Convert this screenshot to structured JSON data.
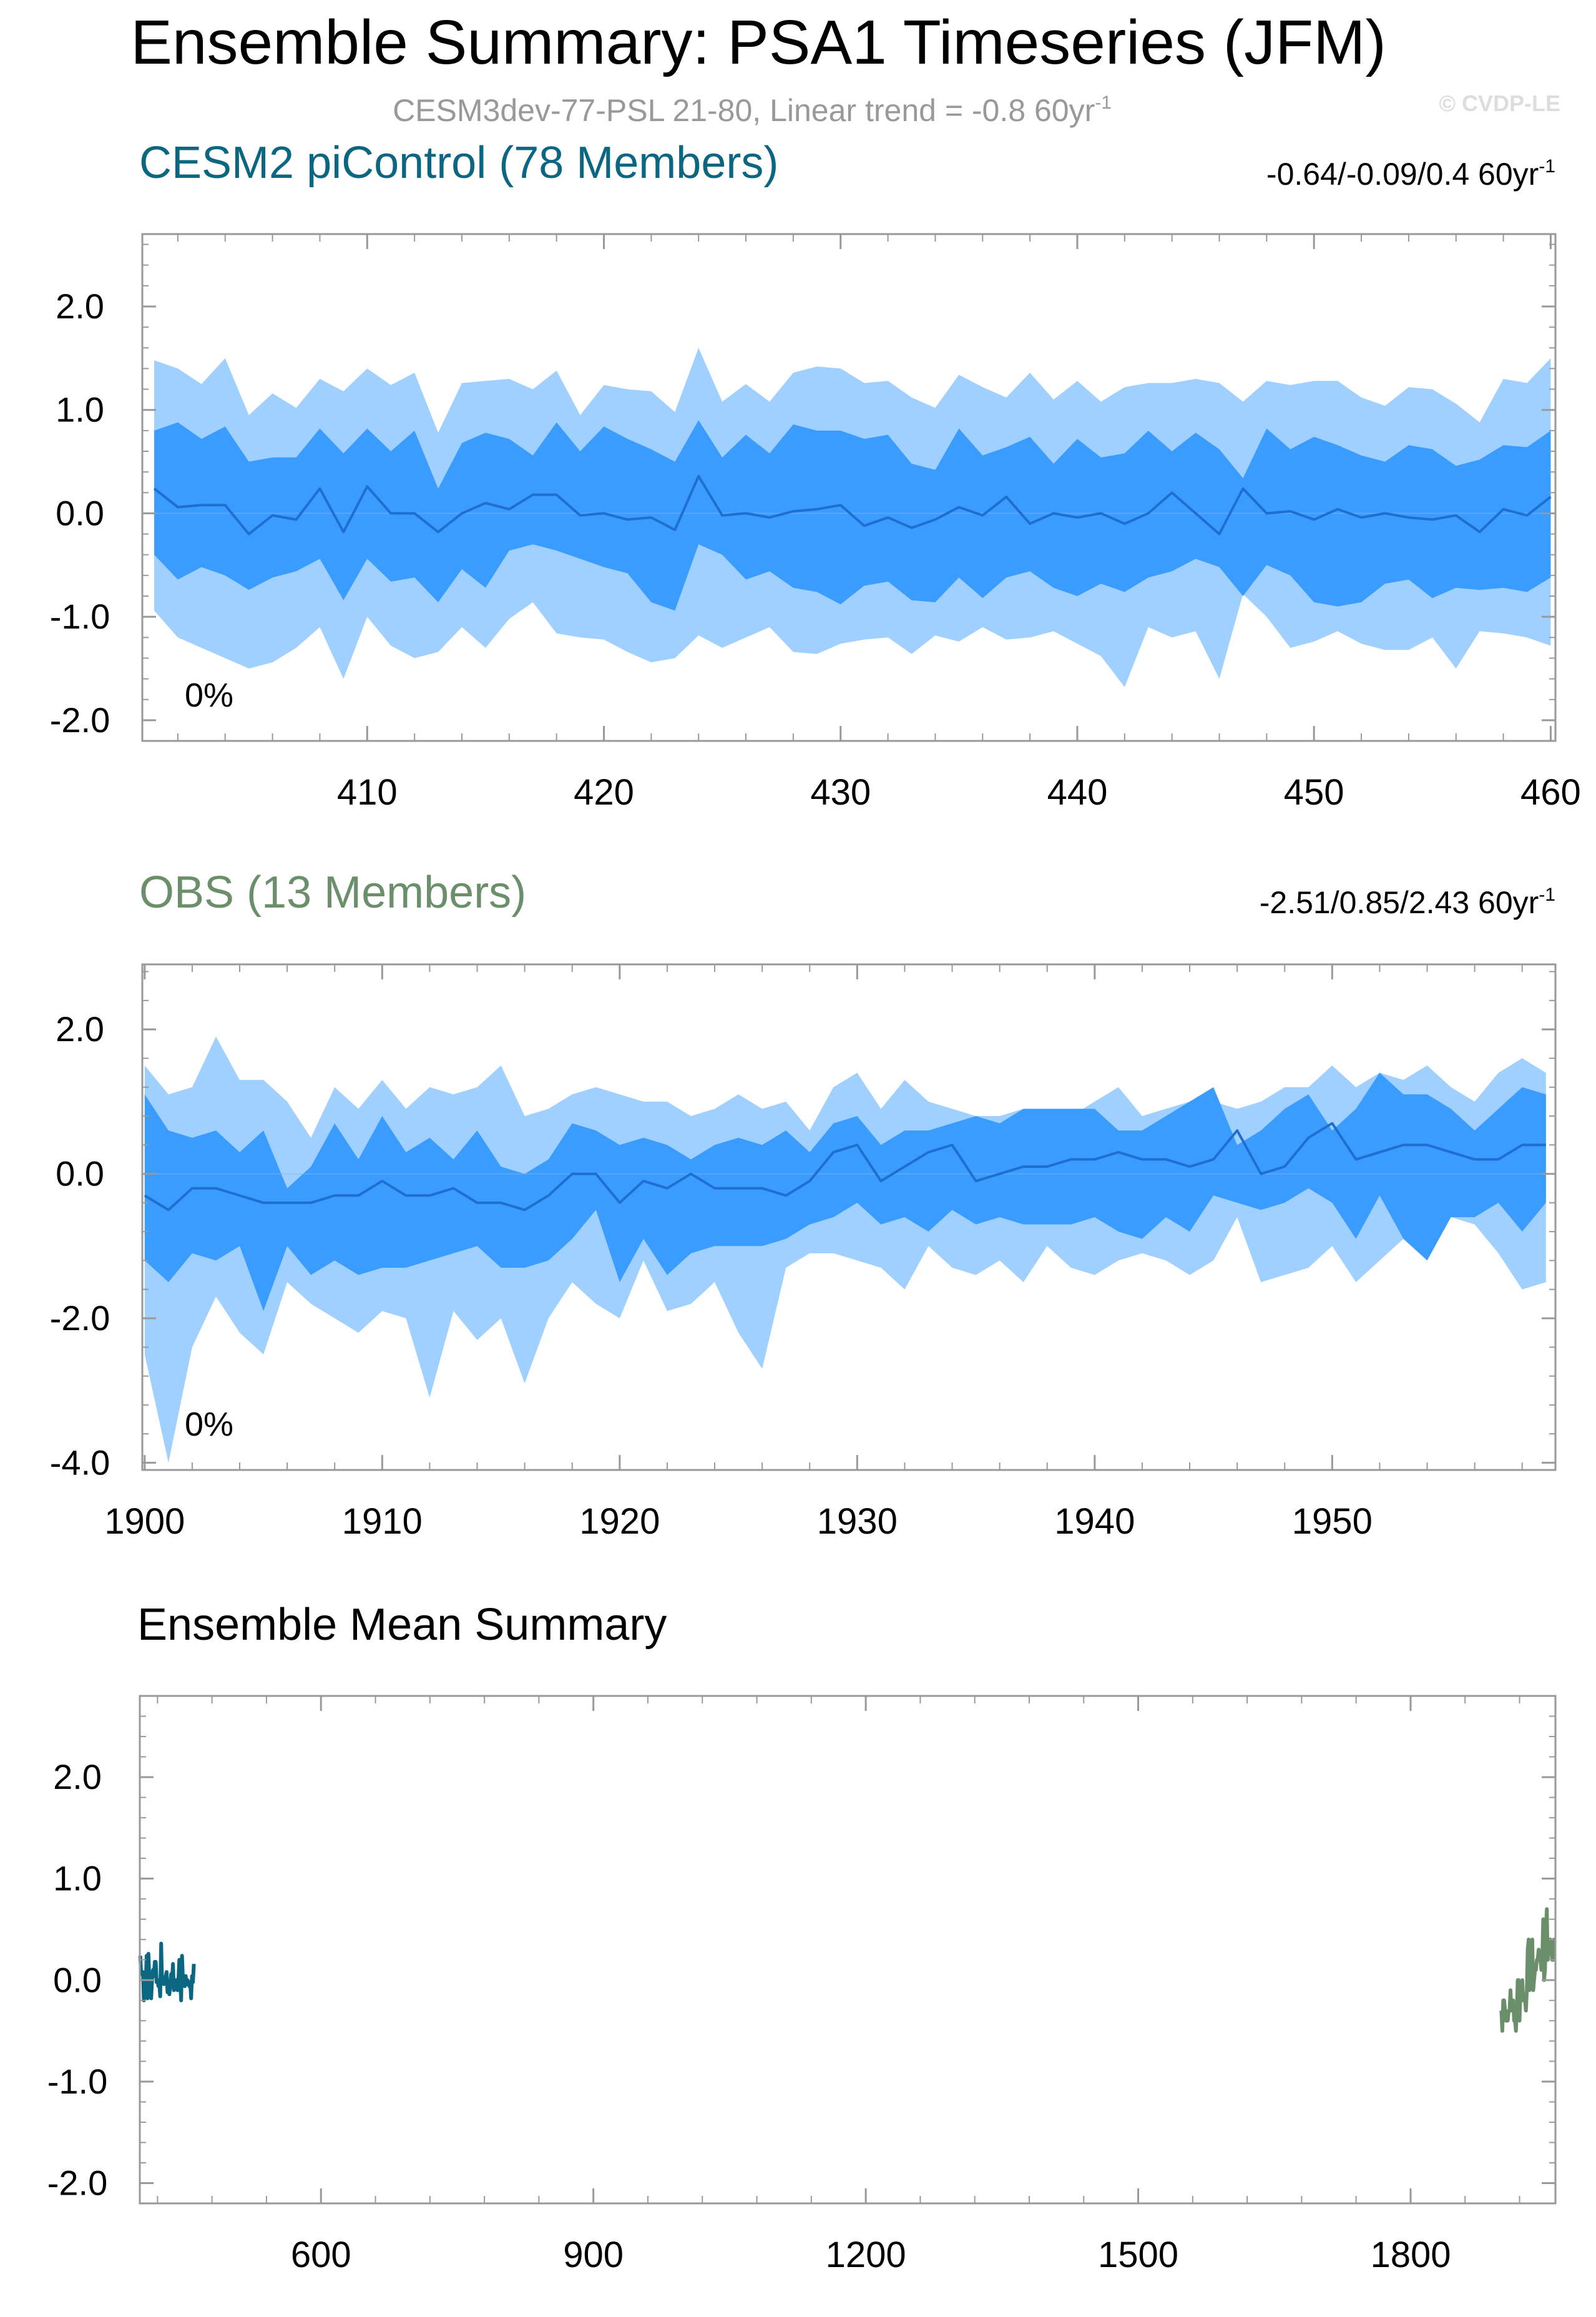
{
  "header": {
    "title": "Ensemble Summary: PSA1 Timeseries (JFM)",
    "subtitle": "CESM3dev-77-PSL 21-80, Linear trend = -0.8 60yr",
    "subtitle_sup": "-1",
    "watermark": "© CVDP-LE"
  },
  "colors": {
    "outer_band": "#a0d0ff",
    "inner_band": "#3a9cff",
    "median_line": "#1e6fd0",
    "cesm2": "#0b6682",
    "obs": "#6b8f6b",
    "frame": "#999999"
  },
  "chart_data": [
    {
      "type": "area",
      "panel": "cesm2",
      "title": "CESM2 piControl (78 Members)",
      "stats": "-0.64/-0.09/0.4 60yr",
      "stats_sup": "-1",
      "percent_label": "0%",
      "xlim": [
        400.5,
        460.2
      ],
      "ylim": [
        -2.2,
        2.7
      ],
      "xticks": [
        410,
        420,
        430,
        440,
        450,
        460
      ],
      "yticks": [
        2.0,
        1.0,
        0.0,
        -1.0,
        -2.0
      ],
      "ytick_labels": [
        "2.0",
        "1.0",
        "0.0",
        "-1.0",
        "-2.0"
      ],
      "x_start": 401,
      "series": {
        "p90": [
          1.48,
          1.4,
          1.25,
          1.5,
          0.95,
          1.16,
          1.02,
          1.3,
          1.18,
          1.4,
          1.24,
          1.36,
          0.78,
          1.26,
          1.28,
          1.3,
          1.2,
          1.38,
          0.95,
          1.24,
          1.2,
          1.18,
          0.98,
          1.6,
          1.08,
          1.25,
          1.08,
          1.36,
          1.42,
          1.4,
          1.26,
          1.28,
          1.12,
          1.02,
          1.34,
          1.22,
          1.12,
          1.36,
          1.1,
          1.28,
          1.08,
          1.22,
          1.26,
          1.26,
          1.3,
          1.26,
          1.08,
          1.28,
          1.24,
          1.28,
          1.28,
          1.12,
          1.04,
          1.22,
          1.2,
          1.06,
          0.88,
          1.3,
          1.26,
          1.5
        ],
        "p75": [
          0.8,
          0.88,
          0.72,
          0.84,
          0.5,
          0.54,
          0.54,
          0.82,
          0.58,
          0.82,
          0.6,
          0.8,
          0.24,
          0.68,
          0.78,
          0.72,
          0.56,
          0.88,
          0.6,
          0.84,
          0.72,
          0.62,
          0.5,
          0.9,
          0.54,
          0.76,
          0.58,
          0.86,
          0.8,
          0.8,
          0.72,
          0.76,
          0.48,
          0.42,
          0.82,
          0.56,
          0.64,
          0.74,
          0.48,
          0.72,
          0.54,
          0.58,
          0.8,
          0.6,
          0.78,
          0.62,
          0.34,
          0.82,
          0.62,
          0.74,
          0.66,
          0.56,
          0.5,
          0.66,
          0.62,
          0.46,
          0.52,
          0.66,
          0.64,
          0.8
        ],
        "median": [
          0.24,
          0.06,
          0.08,
          0.08,
          -0.2,
          -0.02,
          -0.06,
          0.24,
          -0.18,
          0.26,
          0.0,
          0.0,
          -0.18,
          0.0,
          0.1,
          0.04,
          0.18,
          0.18,
          -0.02,
          0.0,
          -0.06,
          -0.04,
          -0.16,
          0.36,
          -0.02,
          0.0,
          -0.04,
          0.02,
          0.04,
          0.08,
          -0.12,
          -0.04,
          -0.14,
          -0.06,
          0.06,
          -0.02,
          0.16,
          -0.1,
          0.0,
          -0.04,
          0.0,
          -0.1,
          0.0,
          0.2,
          0.0,
          -0.2,
          0.24,
          0.0,
          0.02,
          -0.06,
          0.04,
          -0.04,
          0.0,
          -0.04,
          -0.06,
          -0.02,
          -0.18,
          0.04,
          -0.02,
          0.16
        ],
        "p25": [
          -0.4,
          -0.64,
          -0.52,
          -0.6,
          -0.74,
          -0.62,
          -0.56,
          -0.44,
          -0.84,
          -0.44,
          -0.66,
          -0.62,
          -0.86,
          -0.54,
          -0.72,
          -0.36,
          -0.3,
          -0.36,
          -0.44,
          -0.52,
          -0.58,
          -0.86,
          -0.94,
          -0.3,
          -0.4,
          -0.64,
          -0.56,
          -0.72,
          -0.76,
          -0.88,
          -0.7,
          -0.66,
          -0.84,
          -0.86,
          -0.62,
          -0.82,
          -0.62,
          -0.56,
          -0.72,
          -0.8,
          -0.68,
          -0.76,
          -0.62,
          -0.56,
          -0.44,
          -0.52,
          -0.8,
          -0.5,
          -0.6,
          -0.86,
          -0.9,
          -0.86,
          -0.68,
          -0.64,
          -0.82,
          -0.72,
          -0.74,
          -0.72,
          -0.76,
          -0.62
        ],
        "p10": [
          -0.94,
          -1.2,
          -1.3,
          -1.4,
          -1.5,
          -1.44,
          -1.3,
          -1.1,
          -1.6,
          -1.0,
          -1.28,
          -1.4,
          -1.34,
          -1.1,
          -1.3,
          -1.02,
          -0.86,
          -1.16,
          -1.2,
          -1.22,
          -1.34,
          -1.44,
          -1.4,
          -1.18,
          -1.3,
          -1.2,
          -1.1,
          -1.34,
          -1.36,
          -1.26,
          -1.22,
          -1.2,
          -1.36,
          -1.18,
          -1.24,
          -1.1,
          -1.22,
          -1.2,
          -1.14,
          -1.26,
          -1.38,
          -1.68,
          -1.1,
          -1.2,
          -1.14,
          -1.6,
          -0.78,
          -1.0,
          -1.3,
          -1.24,
          -1.14,
          -1.26,
          -1.32,
          -1.32,
          -1.2,
          -1.5,
          -1.14,
          -1.16,
          -1.2,
          -1.28
        ]
      }
    },
    {
      "type": "area",
      "panel": "obs",
      "title": "OBS (13 Members)",
      "stats": "-2.51/0.85/2.43 60yr",
      "stats_sup": "-1",
      "percent_label": "0%",
      "xlim": [
        1899.9,
        1959.4
      ],
      "ylim": [
        -4.1,
        2.9
      ],
      "xticks": [
        1900,
        1910,
        1920,
        1930,
        1940,
        1950
      ],
      "yticks": [
        2.0,
        0.0,
        -2.0,
        -4.0
      ],
      "ytick_labels": [
        "2.0",
        "0.0",
        "-2.0",
        "-4.0"
      ],
      "x_start": 1900,
      "series": {
        "p90": [
          1.5,
          1.1,
          1.2,
          1.9,
          1.3,
          1.3,
          1.0,
          0.5,
          1.2,
          0.9,
          1.3,
          0.9,
          1.2,
          1.1,
          1.2,
          1.5,
          0.8,
          0.9,
          1.1,
          1.2,
          1.1,
          1.0,
          1.0,
          0.8,
          0.9,
          1.1,
          0.9,
          1.0,
          0.6,
          1.2,
          1.4,
          0.9,
          1.3,
          1.0,
          0.9,
          0.8,
          0.8,
          0.9,
          0.8,
          0.8,
          1.0,
          1.2,
          0.8,
          0.9,
          1.0,
          1.0,
          0.9,
          1.0,
          1.2,
          1.2,
          1.5,
          1.2,
          1.4,
          1.3,
          1.5,
          1.2,
          1.0,
          1.4,
          1.6,
          1.4
        ],
        "p75": [
          1.1,
          0.6,
          0.5,
          0.6,
          0.3,
          0.6,
          -0.2,
          0.1,
          0.7,
          0.2,
          0.8,
          0.3,
          0.5,
          0.2,
          0.6,
          0.1,
          0.0,
          0.2,
          0.7,
          0.6,
          0.4,
          0.5,
          0.4,
          0.2,
          0.4,
          0.5,
          0.4,
          0.6,
          0.3,
          0.7,
          0.8,
          0.4,
          0.6,
          0.6,
          0.7,
          0.8,
          0.7,
          0.9,
          0.9,
          0.9,
          0.9,
          0.6,
          0.6,
          0.8,
          1.0,
          1.2,
          0.4,
          0.6,
          0.9,
          1.1,
          0.6,
          0.9,
          1.4,
          1.1,
          1.1,
          0.9,
          0.6,
          0.9,
          1.2,
          1.1
        ],
        "median": [
          -0.3,
          -0.5,
          -0.2,
          -0.2,
          -0.3,
          -0.4,
          -0.4,
          -0.4,
          -0.3,
          -0.3,
          -0.1,
          -0.3,
          -0.3,
          -0.2,
          -0.4,
          -0.4,
          -0.5,
          -0.3,
          0.0,
          0.0,
          -0.4,
          -0.1,
          -0.2,
          0.0,
          -0.2,
          -0.2,
          -0.2,
          -0.3,
          -0.1,
          0.3,
          0.4,
          -0.1,
          0.1,
          0.3,
          0.4,
          -0.1,
          0.0,
          0.1,
          0.1,
          0.2,
          0.2,
          0.3,
          0.2,
          0.2,
          0.1,
          0.2,
          0.6,
          0.0,
          0.1,
          0.5,
          0.7,
          0.2,
          0.3,
          0.4,
          0.4,
          0.3,
          0.2,
          0.2,
          0.4,
          0.4
        ],
        "p25": [
          -1.2,
          -1.5,
          -1.1,
          -1.2,
          -1.0,
          -1.9,
          -1.0,
          -1.4,
          -1.2,
          -1.4,
          -1.3,
          -1.3,
          -1.2,
          -1.1,
          -1.0,
          -1.3,
          -1.3,
          -1.2,
          -0.9,
          -0.5,
          -1.5,
          -0.9,
          -1.4,
          -1.1,
          -1.0,
          -1.0,
          -1.0,
          -0.9,
          -0.7,
          -0.6,
          -0.4,
          -0.7,
          -0.6,
          -0.8,
          -0.5,
          -0.7,
          -0.6,
          -0.7,
          -0.7,
          -0.7,
          -0.6,
          -0.8,
          -0.9,
          -0.6,
          -0.8,
          -0.3,
          -0.4,
          -0.5,
          -0.4,
          -0.2,
          -0.4,
          -0.9,
          -0.3,
          -0.9,
          -1.2,
          -0.6,
          -0.6,
          -0.4,
          -0.8,
          -0.4
        ],
        "p10": [
          -2.5,
          -4.0,
          -2.4,
          -1.7,
          -2.2,
          -2.5,
          -1.5,
          -1.8,
          -2.0,
          -2.2,
          -1.9,
          -2.0,
          -3.1,
          -1.9,
          -2.3,
          -2.0,
          -2.9,
          -2.0,
          -1.5,
          -1.8,
          -2.0,
          -1.2,
          -1.9,
          -1.8,
          -1.5,
          -2.2,
          -2.7,
          -1.3,
          -1.1,
          -1.1,
          -1.2,
          -1.3,
          -1.6,
          -1.0,
          -1.3,
          -1.4,
          -1.2,
          -1.5,
          -1.0,
          -1.3,
          -1.4,
          -1.2,
          -1.1,
          -1.2,
          -1.4,
          -1.2,
          -0.6,
          -1.5,
          -1.4,
          -1.3,
          -1.0,
          -1.5,
          -1.2,
          -0.9,
          -1.0,
          -0.6,
          -0.7,
          -1.1,
          -1.6,
          -1.5
        ]
      }
    },
    {
      "type": "line",
      "panel": "summary",
      "title": "Ensemble Mean Summary",
      "xlim": [
        400.5,
        1959.5
      ],
      "ylim": [
        -2.2,
        2.8
      ],
      "xticks": [
        600,
        900,
        1200,
        1500,
        1800
      ],
      "yticks": [
        2.0,
        1.0,
        0.0,
        -1.0,
        -2.0
      ],
      "ytick_labels": [
        "2.0",
        "1.0",
        "0.0",
        "-1.0",
        "-2.0"
      ],
      "series": [
        {
          "name": "CESM2 piControl",
          "x_start": 401,
          "values": [
            0.24,
            0.06,
            0.08,
            0.08,
            -0.2,
            -0.02,
            -0.06,
            0.24,
            -0.18,
            0.26,
            0.0,
            0.0,
            -0.18,
            0.0,
            0.1,
            0.04,
            0.18,
            0.18,
            -0.02,
            0.0,
            -0.06,
            -0.04,
            -0.16,
            0.36,
            -0.02,
            0.0,
            -0.04,
            0.02,
            0.04,
            0.08,
            -0.12,
            -0.04,
            -0.14,
            -0.06,
            0.06,
            -0.02,
            0.16,
            -0.1,
            0.0,
            -0.04,
            0.0,
            -0.1,
            0.0,
            0.2,
            0.0,
            -0.2,
            0.24,
            0.0,
            0.02,
            -0.06,
            0.04,
            -0.04,
            0.0,
            -0.04,
            -0.06,
            -0.02,
            -0.18,
            0.04,
            -0.02,
            0.16
          ]
        },
        {
          "name": "OBS",
          "x_start": 1900,
          "values": [
            -0.3,
            -0.5,
            -0.2,
            -0.2,
            -0.3,
            -0.4,
            -0.4,
            -0.4,
            -0.3,
            -0.3,
            -0.1,
            -0.3,
            -0.3,
            -0.2,
            -0.4,
            -0.4,
            -0.5,
            -0.3,
            0.0,
            0.0,
            -0.4,
            -0.1,
            -0.2,
            0.0,
            -0.2,
            -0.2,
            -0.2,
            -0.3,
            -0.1,
            0.3,
            0.4,
            -0.1,
            0.1,
            0.3,
            0.4,
            -0.1,
            0.0,
            0.1,
            0.1,
            0.2,
            0.2,
            0.3,
            0.2,
            0.2,
            0.1,
            0.2,
            0.6,
            0.0,
            0.1,
            0.5,
            0.7,
            0.2,
            0.3,
            0.4,
            0.4,
            0.3,
            0.2,
            0.2,
            0.4,
            0.4
          ]
        }
      ]
    }
  ]
}
